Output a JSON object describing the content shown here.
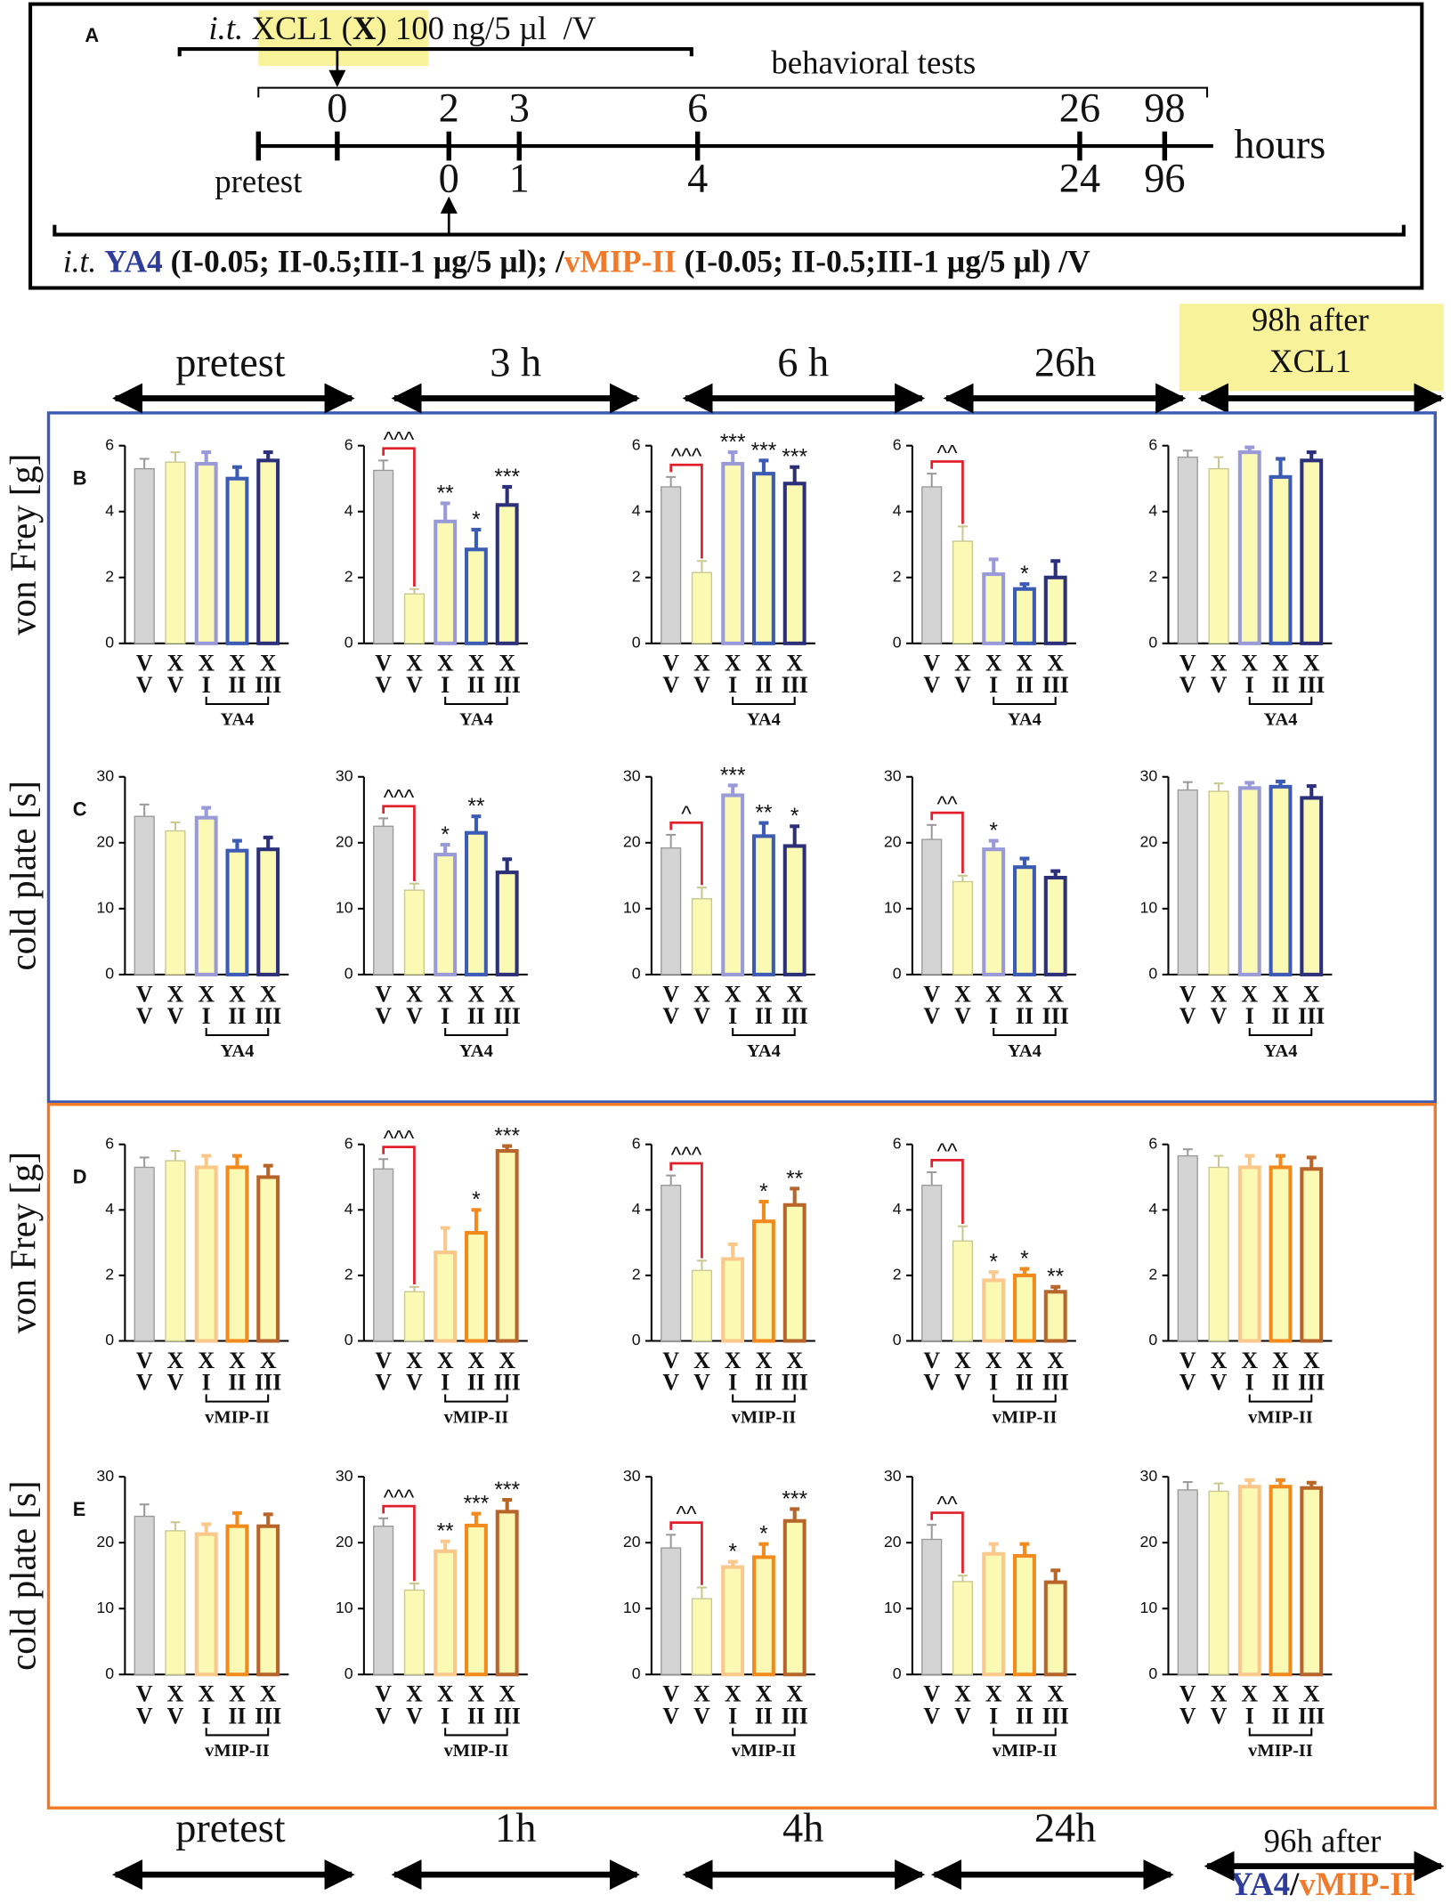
{
  "timeline": {
    "letter": "A",
    "dose_prefix": "i.t.",
    "dose_parts": [
      "XCL1 (",
      "X",
      ")",
      " 100 ng/5 µl  /V"
    ],
    "tests_label": "behavioral tests",
    "top_hours": [
      0,
      2,
      3,
      6,
      26,
      98
    ],
    "bottom_hours": [
      0,
      1,
      4,
      24,
      96
    ],
    "pretest": "pretest",
    "unit": "hours",
    "treatment_prefix": "i.t.",
    "treatment_parts": [
      "YA4",
      " (I-0.05; II-0.5;III-1 µg/5 µl); /",
      "vMIP-II",
      " (I-0.05; II-0.5;III-1 µg/5 µl) /V"
    ]
  },
  "time_top": [
    "pretest",
    "3 h",
    "6 h",
    "26h"
  ],
  "time_top_last": [
    "98h after",
    "XCL1"
  ],
  "time_bottom": [
    "pretest",
    "1h",
    "4h",
    "24h"
  ],
  "time_bottom_last": "96h after",
  "time_bottom_agents": [
    "YA4",
    "/",
    "vMIP-II"
  ],
  "chart_data": [
    {
      "type": "bar",
      "panel": "B",
      "ylabel": "von Frey [g]",
      "ylim": [
        0,
        6
      ],
      "yticks": [
        0,
        2,
        4,
        6
      ],
      "categories": [
        [
          "V",
          "V"
        ],
        [
          "X",
          "V"
        ],
        [
          "X",
          "I"
        ],
        [
          "X",
          "II"
        ],
        [
          "X",
          "III"
        ]
      ],
      "group": "YA4",
      "group_color": "#2e3d9a",
      "colors": [
        "#d4d4d4",
        "#fafab4",
        "#fafab4",
        "#fafab4",
        "#fafab4"
      ],
      "edge_colors": [
        "#9a9a9a",
        "#c8c890",
        "#9a9ad8",
        "#3b5bb5",
        "#2c2f7a"
      ],
      "panels": [
        {
          "values": [
            5.3,
            5.5,
            5.45,
            5.0,
            5.55
          ],
          "errors": [
            0.3,
            0.3,
            0.35,
            0.35,
            0.25
          ]
        },
        {
          "values": [
            5.25,
            1.5,
            3.7,
            2.85,
            4.2
          ],
          "errors": [
            0.3,
            0.15,
            0.55,
            0.6,
            0.55
          ],
          "annotations": [
            null,
            null,
            "**",
            "*",
            "***"
          ],
          "bracket": "^^^"
        },
        {
          "values": [
            4.75,
            2.15,
            5.45,
            5.15,
            4.85
          ],
          "errors": [
            0.3,
            0.35,
            0.35,
            0.4,
            0.5
          ],
          "annotations": [
            null,
            null,
            "***",
            "***",
            "***"
          ],
          "bracket": "^^^"
        },
        {
          "values": [
            4.75,
            3.1,
            2.1,
            1.65,
            2.0
          ],
          "errors": [
            0.4,
            0.45,
            0.45,
            0.15,
            0.5
          ],
          "annotations": [
            null,
            null,
            null,
            "*",
            null
          ],
          "bracket": "^^"
        },
        {
          "values": [
            5.65,
            5.3,
            5.8,
            5.05,
            5.55
          ],
          "errors": [
            0.2,
            0.35,
            0.15,
            0.55,
            0.25
          ]
        }
      ]
    },
    {
      "type": "bar",
      "panel": "C",
      "ylabel": "cold plate [s]",
      "ylim": [
        0,
        30
      ],
      "yticks": [
        0,
        10,
        20,
        30
      ],
      "categories": [
        [
          "V",
          "V"
        ],
        [
          "X",
          "V"
        ],
        [
          "X",
          "I"
        ],
        [
          "X",
          "II"
        ],
        [
          "X",
          "III"
        ]
      ],
      "group": "YA4",
      "group_color": "#2e3d9a",
      "colors": [
        "#d4d4d4",
        "#fafab4",
        "#fafab4",
        "#fafab4",
        "#fafab4"
      ],
      "edge_colors": [
        "#9a9a9a",
        "#c8c890",
        "#9a9ad8",
        "#3b5bb5",
        "#2c2f7a"
      ],
      "panels": [
        {
          "values": [
            24,
            21.8,
            23.8,
            18.8,
            19
          ],
          "errors": [
            1.8,
            1.3,
            1.5,
            1.5,
            1.8
          ]
        },
        {
          "values": [
            22.5,
            12.8,
            18.2,
            21.5,
            15.5
          ],
          "errors": [
            1.2,
            1,
            1.5,
            2.5,
            2
          ],
          "annotations": [
            null,
            null,
            "*",
            "**",
            null
          ],
          "bracket": "^^^"
        },
        {
          "values": [
            19.2,
            11.5,
            27.2,
            21,
            19.5
          ],
          "errors": [
            2,
            1.7,
            1.5,
            2,
            3
          ],
          "annotations": [
            null,
            null,
            "***",
            "**",
            "*"
          ],
          "bracket": "^"
        },
        {
          "values": [
            20.5,
            14.1,
            19,
            16.3,
            14.7
          ],
          "errors": [
            2.2,
            0.9,
            1.3,
            1.3,
            1
          ],
          "annotations": [
            null,
            null,
            "*",
            null,
            null
          ],
          "bracket": "^^"
        },
        {
          "values": [
            28,
            27.8,
            28.3,
            28.5,
            26.8
          ],
          "errors": [
            1.2,
            1.2,
            0.8,
            0.8,
            1.8
          ]
        }
      ]
    },
    {
      "type": "bar",
      "panel": "D",
      "ylabel": "von Frey [g]",
      "ylim": [
        0,
        6
      ],
      "yticks": [
        0,
        2,
        4,
        6
      ],
      "categories": [
        [
          "V",
          "V"
        ],
        [
          "X",
          "V"
        ],
        [
          "X",
          "I"
        ],
        [
          "X",
          "II"
        ],
        [
          "X",
          "III"
        ]
      ],
      "group": "vMIP-II",
      "group_color": "#f07a2a",
      "colors": [
        "#d4d4d4",
        "#fafab4",
        "#fafab4",
        "#fafab4",
        "#fafab4"
      ],
      "edge_colors": [
        "#9a9a9a",
        "#c8c890",
        "#f9c88a",
        "#f38a1d",
        "#b8652a"
      ],
      "panels": [
        {
          "values": [
            5.3,
            5.5,
            5.3,
            5.3,
            5.0
          ],
          "errors": [
            0.3,
            0.3,
            0.35,
            0.35,
            0.35
          ]
        },
        {
          "values": [
            5.25,
            1.5,
            2.7,
            3.3,
            5.8
          ],
          "errors": [
            0.3,
            0.15,
            0.75,
            0.7,
            0.15
          ],
          "annotations": [
            null,
            null,
            null,
            "*",
            "***"
          ],
          "bracket": "^^^"
        },
        {
          "values": [
            4.75,
            2.15,
            2.5,
            3.65,
            4.15
          ],
          "errors": [
            0.3,
            0.3,
            0.45,
            0.6,
            0.5
          ],
          "annotations": [
            null,
            null,
            null,
            "*",
            "**"
          ],
          "bracket": "^^^"
        },
        {
          "values": [
            4.75,
            3.05,
            1.85,
            2.0,
            1.5
          ],
          "errors": [
            0.4,
            0.45,
            0.25,
            0.2,
            0.15
          ],
          "annotations": [
            null,
            null,
            "*",
            "*",
            "**"
          ],
          "bracket": "^^"
        },
        {
          "values": [
            5.65,
            5.3,
            5.3,
            5.3,
            5.25
          ],
          "errors": [
            0.2,
            0.35,
            0.35,
            0.35,
            0.35
          ]
        }
      ]
    },
    {
      "type": "bar",
      "panel": "E",
      "ylabel": "cold plate [s]",
      "ylim": [
        0,
        30
      ],
      "yticks": [
        0,
        10,
        20,
        30
      ],
      "categories": [
        [
          "V",
          "V"
        ],
        [
          "X",
          "V"
        ],
        [
          "X",
          "I"
        ],
        [
          "X",
          "II"
        ],
        [
          "X",
          "III"
        ]
      ],
      "group": "vMIP-II",
      "group_color": "#f07a2a",
      "colors": [
        "#d4d4d4",
        "#fafab4",
        "#fafab4",
        "#fafab4",
        "#fafab4"
      ],
      "edge_colors": [
        "#9a9a9a",
        "#c8c890",
        "#f9c88a",
        "#f38a1d",
        "#b8652a"
      ],
      "panels": [
        {
          "values": [
            24,
            21.8,
            21.3,
            22.5,
            22.5
          ],
          "errors": [
            1.8,
            1.3,
            1.5,
            2,
            1.8
          ]
        },
        {
          "values": [
            22.5,
            12.8,
            18.7,
            22.6,
            24.7
          ],
          "errors": [
            1.2,
            1,
            1.5,
            1.8,
            1.8
          ],
          "annotations": [
            null,
            null,
            "**",
            "***",
            "***"
          ],
          "bracket": "^^^"
        },
        {
          "values": [
            19.2,
            11.5,
            16.3,
            17.8,
            23.3
          ],
          "errors": [
            2,
            1.7,
            0.8,
            2,
            1.8
          ],
          "annotations": [
            null,
            null,
            "*",
            "*",
            "***"
          ],
          "bracket": "^^"
        },
        {
          "values": [
            20.5,
            14.1,
            18.3,
            18,
            14
          ],
          "errors": [
            2.2,
            0.9,
            1.5,
            1.8,
            1.8
          ],
          "bracket": "^^"
        },
        {
          "values": [
            28,
            27.8,
            28.5,
            28.5,
            28.3
          ],
          "errors": [
            1.2,
            1.2,
            1,
            1,
            0.8
          ]
        }
      ]
    }
  ]
}
